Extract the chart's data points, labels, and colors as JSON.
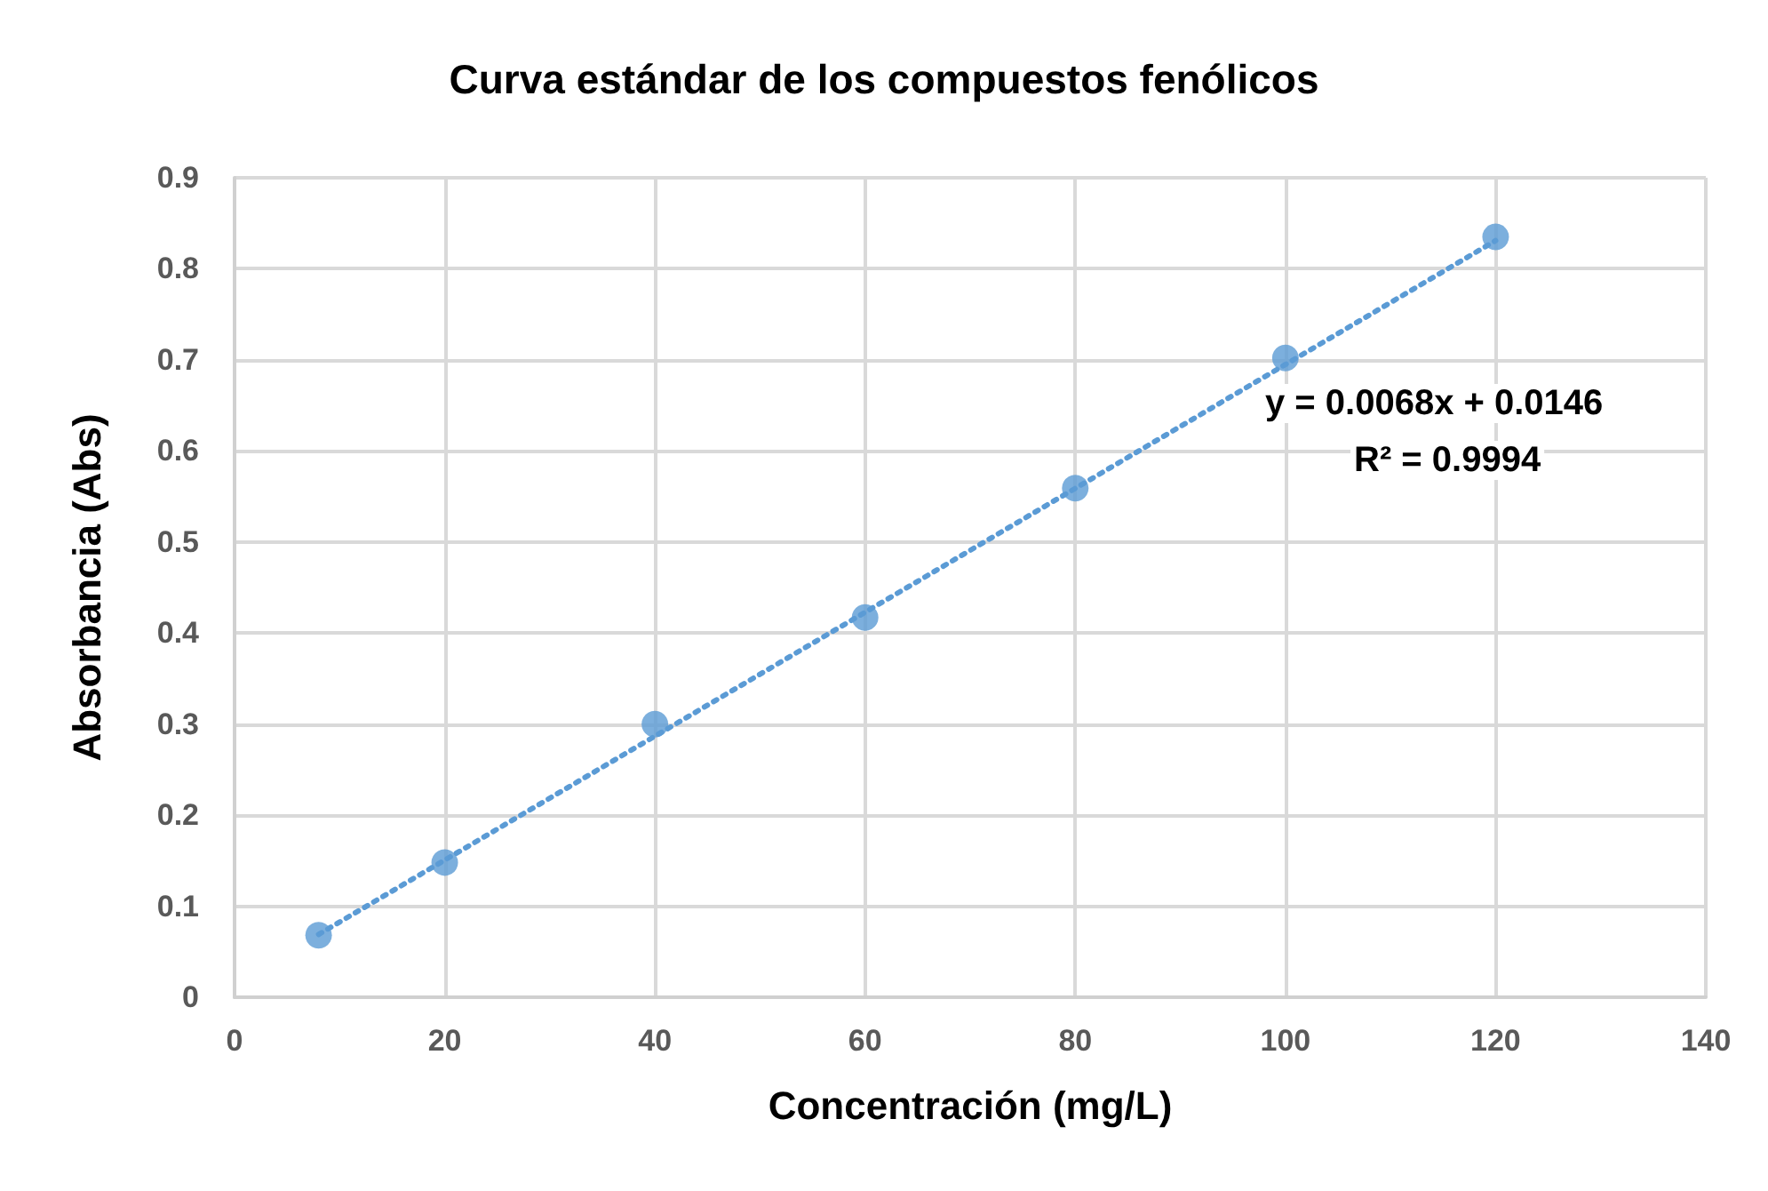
{
  "chart_data": {
    "type": "scatter",
    "title": "Curva estándar de los compuestos fenólicos",
    "xlabel": "Concentración (mg/L)",
    "ylabel": "Absorbancia (Abs)",
    "series": [
      {
        "color": "#5b9bd5",
        "marker": "circle",
        "x": [
          8,
          20,
          40,
          60,
          80,
          100,
          120
        ],
        "values": [
          0.068,
          0.148,
          0.3,
          0.417,
          0.559,
          0.702,
          0.835
        ]
      },
      {
        "type": "line",
        "color": "#5b9bd5",
        "marker": "none",
        "line_style": "dotted",
        "x": [
          8,
          120
        ],
        "values": [
          0.069,
          0.831
        ]
      }
    ],
    "annotations": [
      "y = 0.0068x + 0.0146",
      "R² = 0.9994"
    ],
    "xlim": [
      0,
      140
    ],
    "xticks": [
      0,
      20,
      40,
      60,
      80,
      100,
      120,
      140
    ],
    "ylim": [
      0,
      0.9
    ],
    "yticks": [
      0,
      0.1,
      0.2,
      0.3,
      0.4,
      0.5,
      0.6,
      0.7,
      0.8,
      0.9
    ],
    "grid": true
  }
}
